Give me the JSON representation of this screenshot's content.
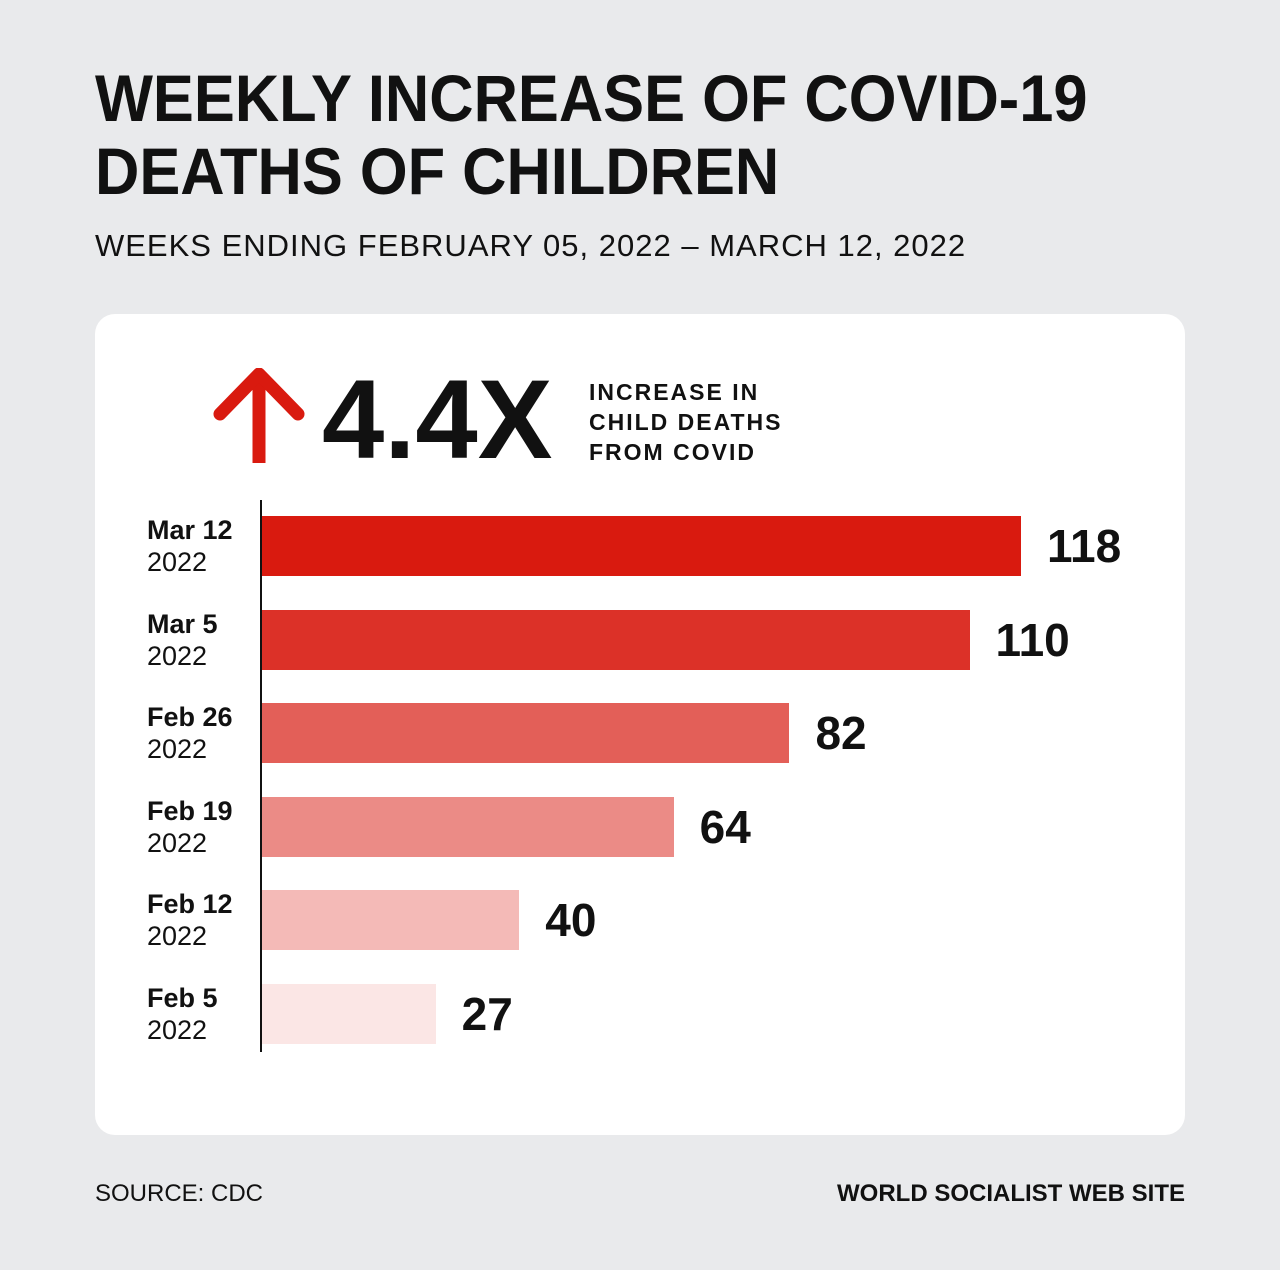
{
  "chart_data": {
    "type": "bar",
    "orientation": "horizontal",
    "title": "WEEKLY INCREASE OF COVID-19 DEATHS OF CHILDREN",
    "subtitle": "WEEKS ENDING FEBRUARY 05, 2022 – MARCH 12, 2022",
    "categories": [
      {
        "date": "Mar 12",
        "year": "2022"
      },
      {
        "date": "Mar 5",
        "year": "2022"
      },
      {
        "date": "Feb 26",
        "year": "2022"
      },
      {
        "date": "Feb 19",
        "year": "2022"
      },
      {
        "date": "Feb 12",
        "year": "2022"
      },
      {
        "date": "Feb 5",
        "year": "2022"
      }
    ],
    "values": [
      118,
      110,
      82,
      64,
      40,
      27
    ],
    "colors": [
      "#d91a0f",
      "#dc3128",
      "#e35f58",
      "#eb8b86",
      "#f4bab7",
      "#fbe6e5"
    ],
    "xlim": [
      0,
      118
    ],
    "grid": false,
    "xlabel": "",
    "ylabel": ""
  },
  "header": {
    "title_line1": "WEEKLY INCREASE OF COVID-19",
    "title_line2": "DEATHS OF CHILDREN",
    "subtitle": "WEEKS ENDING FEBRUARY 05, 2022 – MARCH 12, 2022"
  },
  "callout": {
    "icon": "arrow-up-icon",
    "arrow_color": "#d91a0f",
    "value": "4.4X",
    "lines": [
      "INCREASE IN",
      "CHILD DEATHS",
      "FROM COVID"
    ]
  },
  "footer": {
    "source": "SOURCE: CDC",
    "credit": "WORLD SOCIALIST WEB SITE"
  }
}
